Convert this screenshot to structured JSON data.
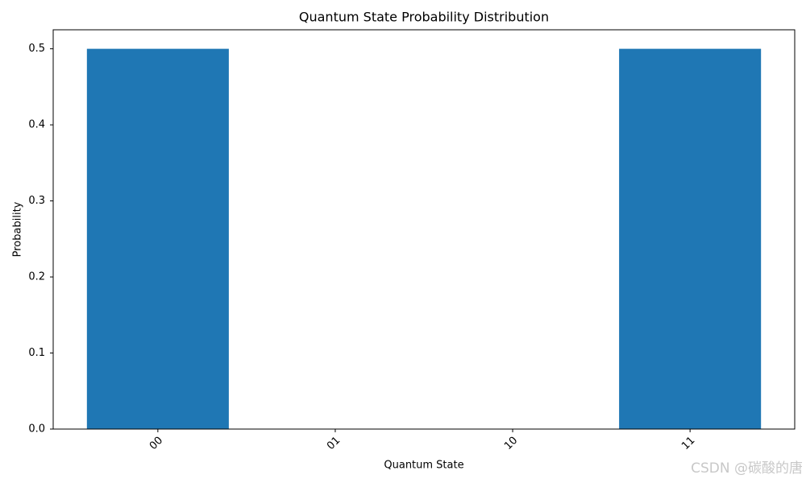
{
  "chart_data": {
    "type": "bar",
    "title": "Quantum State Probability Distribution",
    "x_label": "Quantum State",
    "y_label": "Probability",
    "categories": [
      "00",
      "01",
      "10",
      "11"
    ],
    "values": [
      0.5,
      0,
      0,
      0.5
    ],
    "color": "#1f77b4",
    "ylim": [
      0,
      0.525
    ],
    "yticks": [
      {
        "value": 0,
        "label": "0.0"
      },
      0.1,
      0.2,
      0.3,
      0.4,
      0.5
    ],
    "grid": false,
    "watermark": "CSDN @碳酸的唐"
  }
}
